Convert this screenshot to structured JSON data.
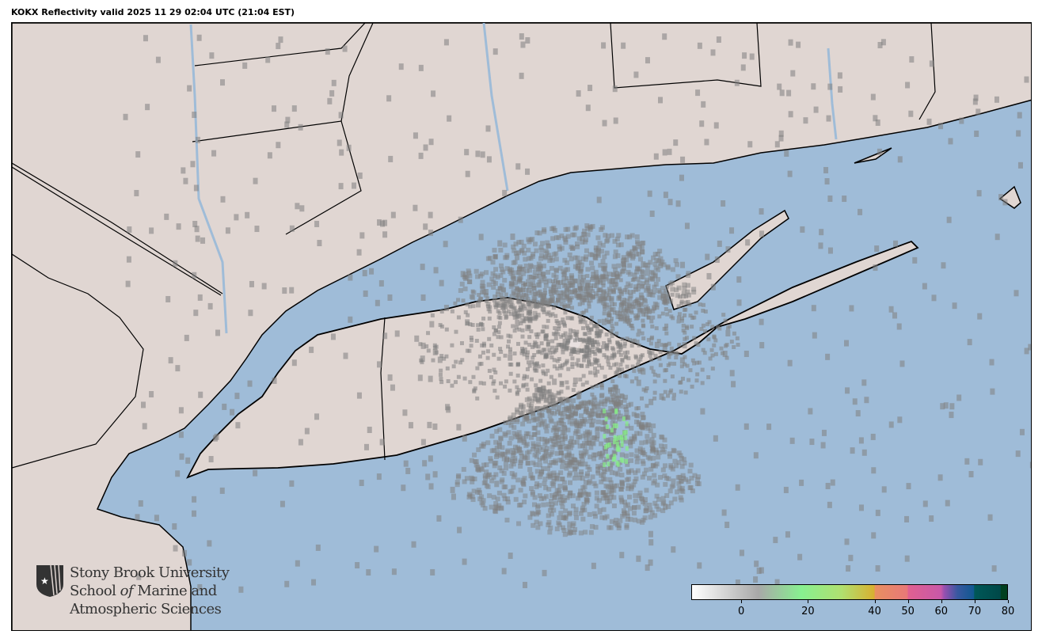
{
  "title": "KOKX Reflectivity valid 2025 11 29 02:04 UTC (21:04 EST)",
  "logo": {
    "line1": "Stony Brook University",
    "line2a": "School ",
    "line2b": "of",
    "line2c": " Marine and",
    "line3": "Atmospheric Sciences"
  },
  "colors": {
    "ocean": "#9fbcd8",
    "land": "#e0d6d2",
    "radar_gray": "#808080",
    "radar_green": "#88ee88"
  },
  "colorbar": {
    "range": [
      -15,
      80
    ],
    "unit_ticks": [
      0,
      20,
      40,
      50,
      60,
      70,
      80
    ],
    "tick_labels": [
      "0",
      "20",
      "40",
      "50",
      "60",
      "70",
      "80"
    ],
    "stops": [
      {
        "v": -15,
        "c": "#ffffff"
      },
      {
        "v": 5,
        "c": "#a8a8a8"
      },
      {
        "v": 18,
        "c": "#88f090"
      },
      {
        "v": 30,
        "c": "#b0e070"
      },
      {
        "v": 40,
        "c": "#d8b030"
      },
      {
        "v": 40.1,
        "c": "#e89060"
      },
      {
        "v": 50,
        "c": "#e87878"
      },
      {
        "v": 50.1,
        "c": "#e06090"
      },
      {
        "v": 60,
        "c": "#c858a8"
      },
      {
        "v": 61,
        "c": "#9850b0"
      },
      {
        "v": 65,
        "c": "#3858a0"
      },
      {
        "v": 70,
        "c": "#105890"
      },
      {
        "v": 70.1,
        "c": "#005858"
      },
      {
        "v": 78,
        "c": "#004848"
      },
      {
        "v": 78.1,
        "c": "#004020"
      },
      {
        "v": 80,
        "c": "#004020"
      }
    ]
  }
}
